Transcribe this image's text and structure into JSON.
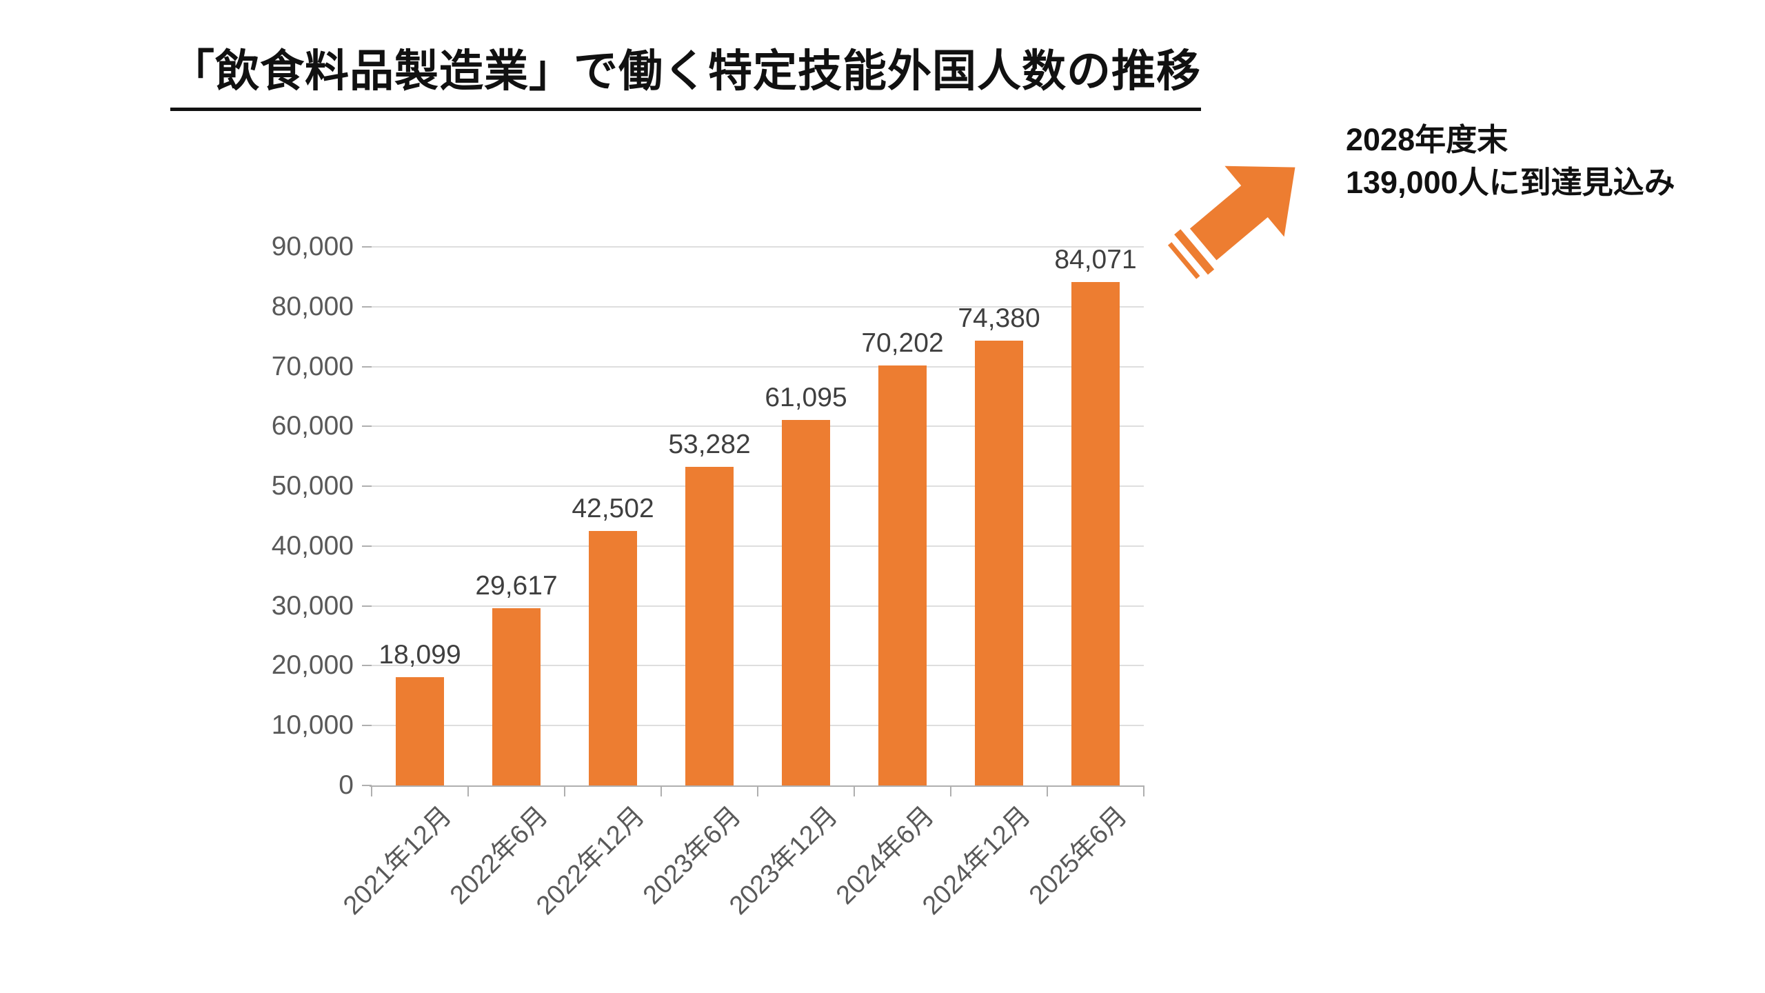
{
  "page": {
    "background": "#FFFFFF"
  },
  "title": {
    "text": "「飲食料品製造業」で働く特定技能外国人数の推移"
  },
  "annotation": {
    "line1": "2028年度末",
    "line2": "139,000人に到達見込み"
  },
  "arrow": {
    "meaning": "projected-growth-arrow",
    "color": "#ED7D31"
  },
  "chart_data": {
    "type": "bar",
    "title": "「飲食料品製造業」で働く特定技能外国人数の推移",
    "categories": [
      "2021年12月",
      "2022年6月",
      "2022年12月",
      "2023年6月",
      "2023年12月",
      "2024年6月",
      "2024年12月",
      "2025年6月"
    ],
    "values": [
      18099,
      29617,
      42502,
      53282,
      61095,
      70202,
      74380,
      84071
    ],
    "data_labels": [
      "18,099",
      "29,617",
      "42,502",
      "53,282",
      "61,095",
      "70,202",
      "74,380",
      "84,071"
    ],
    "xlabel": "",
    "ylabel": "",
    "ylim": [
      0,
      90000
    ],
    "y_tick_interval": 10000,
    "y_tick_labels": [
      "0",
      "10,000",
      "20,000",
      "30,000",
      "40,000",
      "50,000",
      "60,000",
      "70,000",
      "80,000",
      "90,000"
    ],
    "grid": true,
    "legend": false,
    "bar_color": "#ED7D31",
    "gridline_color": "#DEDEDE",
    "axis_color": "#AFAFAF",
    "y_tick_label_color": "#595959",
    "x_tick_label_color": "#595959",
    "data_label_color": "#3F3F3F"
  }
}
